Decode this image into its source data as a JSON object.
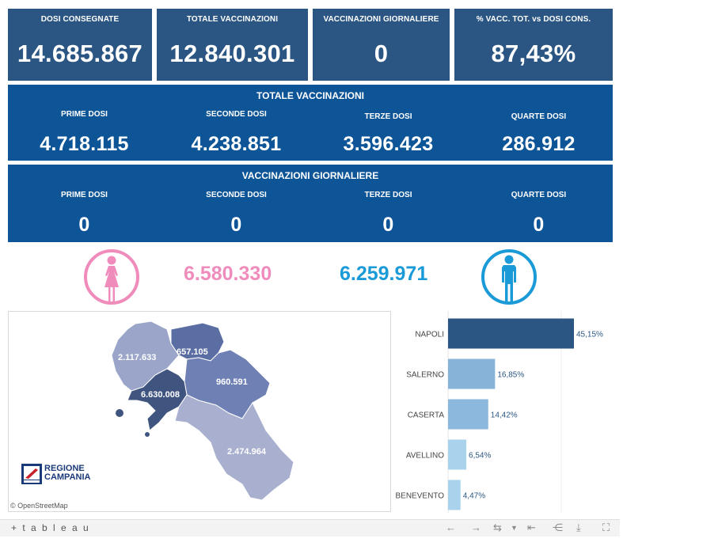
{
  "kpis": [
    {
      "label": "DOSI  CONSEGNATE",
      "value": "14.685.867"
    },
    {
      "label": "TOTALE VACCINAZIONI",
      "value": "12.840.301"
    },
    {
      "label": "VACCINAZIONI GIORNALIERE",
      "value": "0"
    },
    {
      "label": "% VACC. TOT. vs DOSI CONS.",
      "value": "87,43%"
    }
  ],
  "totale": {
    "title": "TOTALE VACCINAZIONI",
    "cols": [
      {
        "label": "PRIME DOSI",
        "value": "4.718.115"
      },
      {
        "label": "SECONDE DOSI",
        "value": "4.238.851"
      },
      {
        "label": "TERZE DOSI",
        "value": "3.596.423"
      },
      {
        "label": "QUARTE DOSI",
        "value": "286.912"
      }
    ]
  },
  "giornaliere": {
    "title": "VACCINAZIONI GIORNALIERE",
    "cols": [
      {
        "label": "PRIME DOSI",
        "value": "0"
      },
      {
        "label": "SECONDE DOSI",
        "value": "0"
      },
      {
        "label": "TERZE DOSI",
        "value": "0"
      },
      {
        "label": "QUARTE DOSI",
        "value": "0"
      }
    ]
  },
  "gender": {
    "female_value": "6.580.330",
    "male_value": "6.259.971",
    "female_color": "#f08cbc",
    "male_color": "#1a9ad7",
    "female_icon": "female-person-icon",
    "male_icon": "male-person-icon"
  },
  "map": {
    "labels": {
      "caserta": "2.117.633",
      "benevento": "657.105",
      "avellino": "960.591",
      "napoli": "6.630.008",
      "salerno": "2.474.964"
    },
    "logo_line1": "REGIONE",
    "logo_line2": "CAMPANIA",
    "attribution": "© OpenStreetMap"
  },
  "chart_data": {
    "type": "bar",
    "orientation": "horizontal",
    "categories": [
      "NAPOLI",
      "SALERNO",
      "CASERTA",
      "AVELLINO",
      "BENEVENTO"
    ],
    "values": [
      45.15,
      16.85,
      14.42,
      6.54,
      4.47
    ],
    "value_labels": [
      "45,15%",
      "16,85%",
      "14,42%",
      "6,54%",
      "4,47%"
    ],
    "colors": [
      "#2b5683",
      "#87b3d8",
      "#8db8dd",
      "#a9d2ec",
      "#a9d2ec"
    ],
    "xlim": [
      0,
      50
    ]
  },
  "toolbar": {
    "brand": "+ t a b l e a u"
  }
}
